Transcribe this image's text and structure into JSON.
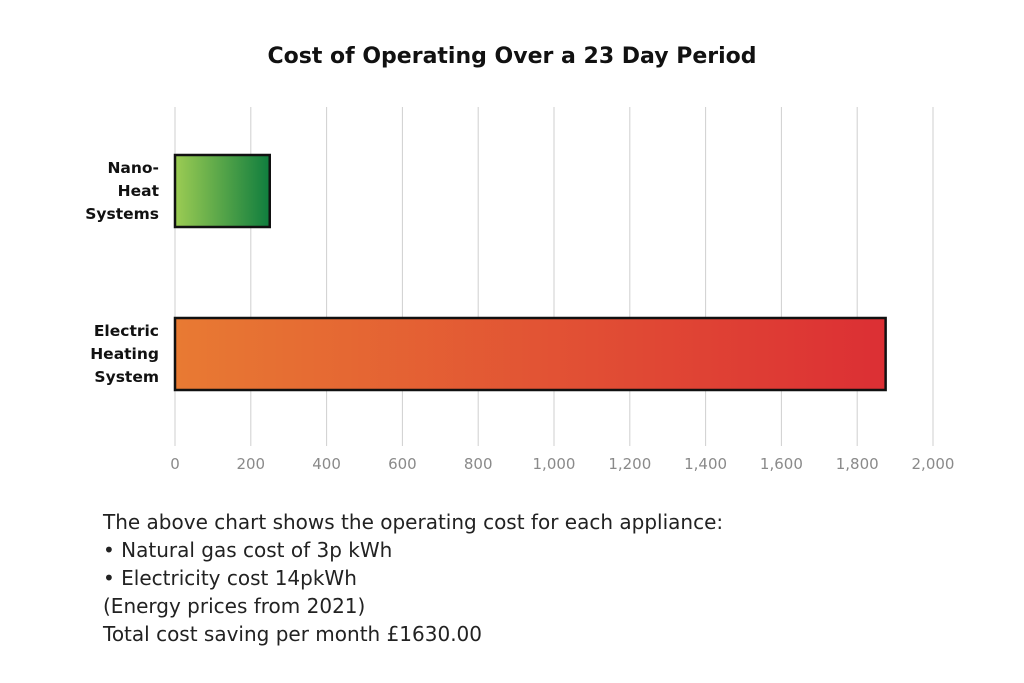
{
  "chart_data": {
    "type": "bar",
    "orientation": "horizontal",
    "title": "Cost of Operating Over a 23 Day Period",
    "categories": [
      [
        "Nano-",
        "Heat",
        "Systems"
      ],
      [
        "Electric",
        "Heating",
        "System"
      ]
    ],
    "values": [
      250,
      1875
    ],
    "xlim": [
      0,
      2000
    ],
    "ticks": [
      "0",
      "200",
      "400",
      "600",
      "800",
      "1,000",
      "1,200",
      "1,400",
      "1,600",
      "1,800",
      "2,000"
    ],
    "tick_values": [
      0,
      200,
      400,
      600,
      800,
      1000,
      1200,
      1400,
      1600,
      1800,
      2000
    ],
    "grid": true,
    "bar_gradients": [
      {
        "from": "#9ccc53",
        "to": "#0f7d3e"
      },
      {
        "from": "#e87a33",
        "to": "#dc2f34"
      }
    ]
  },
  "notes": {
    "intro": "The above chart shows the operating cost for each appliance:",
    "bullet1": "• Natural gas cost of 3p kWh",
    "bullet2": "• Electricity cost 14pkWh",
    "prices_note": "(Energy prices from 2021)",
    "saving": "Total cost saving per month £1630.00"
  }
}
